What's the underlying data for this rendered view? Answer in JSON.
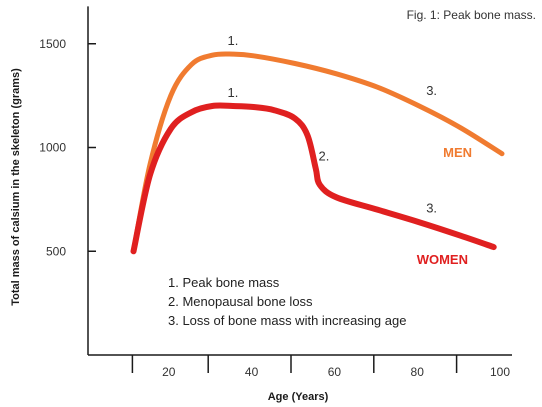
{
  "chart_data": {
    "type": "line",
    "caption": "Fig. 1: Peak bone mass.",
    "xlabel": "Age (Years)",
    "ylabel": "Total mass of calsium in the skeleton (grams)",
    "xlim": [
      0,
      102
    ],
    "ylim": [
      0,
      1680
    ],
    "x_ticks": [
      20,
      40,
      60,
      80,
      100
    ],
    "y_ticks": [
      500,
      1000,
      1500
    ],
    "grid": false,
    "colors": {
      "men": "#f07b30",
      "women": "#e02020",
      "axis": "#1a1a1a"
    },
    "series": [
      {
        "name": "MEN",
        "x": [
          11,
          15,
          20,
          25,
          30,
          35,
          40,
          50,
          60,
          70,
          80,
          90,
          100
        ],
        "y": [
          500,
          920,
          1250,
          1400,
          1445,
          1450,
          1442,
          1405,
          1355,
          1290,
          1200,
          1095,
          970
        ]
      },
      {
        "name": "WOMEN",
        "x": [
          11,
          15,
          20,
          25,
          30,
          35,
          40,
          45,
          50,
          53,
          55,
          56,
          60,
          70,
          80,
          90,
          98
        ],
        "y": [
          500,
          870,
          1090,
          1170,
          1200,
          1200,
          1195,
          1180,
          1140,
          1060,
          900,
          820,
          760,
          700,
          640,
          575,
          520
        ]
      }
    ],
    "annotations": [
      {
        "text": "1.",
        "x": 35,
        "y": 1455
      },
      {
        "text": "1.",
        "x": 35,
        "y": 1205
      },
      {
        "text": "2.",
        "x": 57,
        "y": 900
      },
      {
        "text": "3.",
        "x": 83,
        "y": 1215
      },
      {
        "text": "3.",
        "x": 83,
        "y": 648
      }
    ],
    "legend_notes": [
      "1. Peak bone mass",
      "2. Menopausal bone loss",
      "3. Loss of bone mass with increasing age"
    ]
  }
}
